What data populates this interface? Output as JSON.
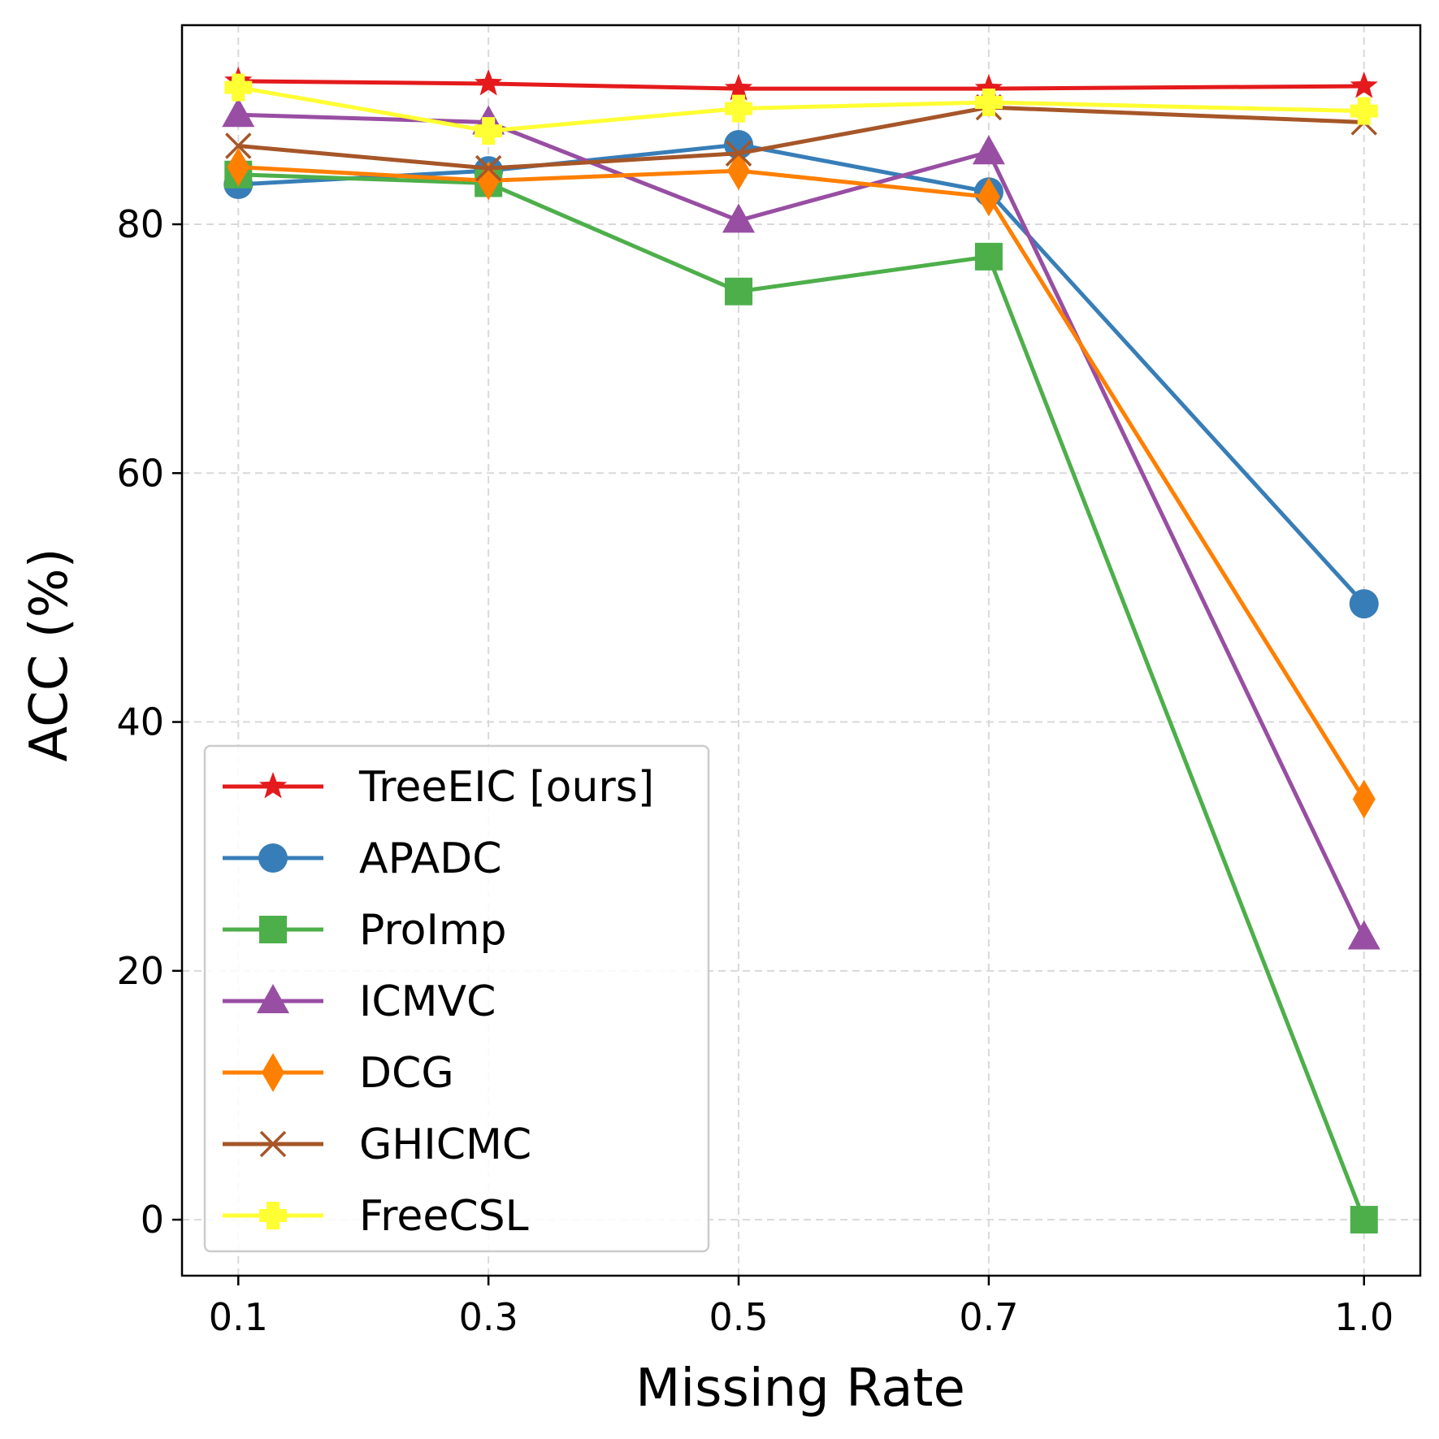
{
  "chart_data": {
    "type": "line",
    "title": "",
    "xlabel": "Missing Rate",
    "ylabel": "ACC (%)",
    "x": [
      0.1,
      0.3,
      0.5,
      0.7,
      1.0
    ],
    "x_tick_labels": [
      "0.1",
      "0.3",
      "0.5",
      "0.7",
      "1.0"
    ],
    "y_ticks": [
      0,
      20,
      40,
      60,
      80
    ],
    "xlim": [
      0.055,
      1.045
    ],
    "ylim": [
      -4.5,
      96
    ],
    "grid": true,
    "legend_position": "lower-left",
    "series": [
      {
        "name": "TreeEIC [ours]",
        "color": "#e41a1c",
        "marker": "star",
        "values": [
          91.5,
          91.3,
          90.9,
          90.9,
          91.1
        ]
      },
      {
        "name": "APADC",
        "color": "#377eb8",
        "marker": "circle",
        "values": [
          83.2,
          84.3,
          86.4,
          82.6,
          49.5
        ]
      },
      {
        "name": "ProImp",
        "color": "#4daf4a",
        "marker": "square",
        "values": [
          84.0,
          83.3,
          74.6,
          77.4,
          0.0
        ]
      },
      {
        "name": "ICMVC",
        "color": "#984ea3",
        "marker": "triangle",
        "values": [
          88.8,
          88.2,
          80.3,
          85.8,
          22.7
        ]
      },
      {
        "name": "DCG",
        "color": "#ff7f00",
        "marker": "diamond",
        "values": [
          84.6,
          83.5,
          84.3,
          82.2,
          33.8
        ]
      },
      {
        "name": "GHICMC",
        "color": "#a65628",
        "marker": "x",
        "values": [
          86.3,
          84.5,
          85.7,
          89.4,
          88.2
        ]
      },
      {
        "name": "FreeCSL",
        "color": "#ffff33",
        "marker": "plus",
        "values": [
          91.0,
          87.5,
          89.3,
          89.8,
          89.1
        ]
      }
    ]
  }
}
